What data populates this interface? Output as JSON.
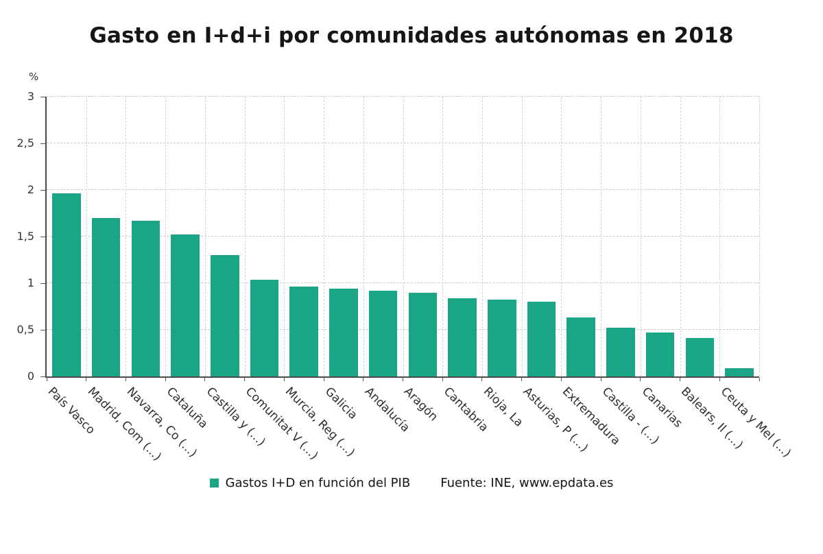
{
  "chart_data": {
    "type": "bar",
    "title": "Gasto en I+d+i por comunidades autónomas en 2018",
    "ylabel": "%",
    "ylim": [
      0,
      3
    ],
    "ytick_values": [
      0,
      0.5,
      1,
      1.5,
      2,
      2.5,
      3
    ],
    "ytick_labels": [
      "0",
      "0,5",
      "1",
      "1,5",
      "2",
      "2,5",
      "3"
    ],
    "grid": "dashed",
    "legend_position": "bottom",
    "categories": [
      "País Vasco",
      "Madrid, Com (...)",
      "Navarra, Co (...)",
      "Cataluña",
      "Castilla y (...)",
      "Comunitat V (...)",
      "Murcia, Reg (...)",
      "Galicia",
      "Andalucía",
      "Aragón",
      "Cantabria",
      "Rioja, La",
      "Asturias, P (...)",
      "Extremadura",
      "Castilla - (...)",
      "Canarias",
      "Balears, Il (...)",
      "Ceuta y Mel (...)"
    ],
    "values": [
      1.96,
      1.7,
      1.67,
      1.52,
      1.3,
      1.04,
      0.96,
      0.94,
      0.92,
      0.9,
      0.84,
      0.82,
      0.8,
      0.63,
      0.52,
      0.47,
      0.41,
      0.09
    ],
    "bar_color": "#1ba587",
    "legend": "Gastos I+D en función del PIB",
    "source": "Fuente: INE, www.epdata.es"
  }
}
